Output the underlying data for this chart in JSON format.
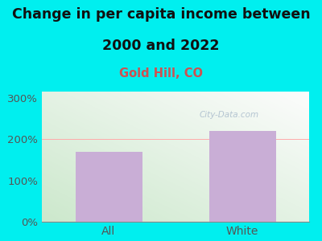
{
  "categories": [
    "All",
    "White"
  ],
  "values": [
    170,
    220
  ],
  "bar_color": "#c9aed6",
  "title_line1": "Change in per capita income between",
  "title_line2": "2000 and 2022",
  "subtitle": "Gold Hill, CO",
  "subtitle_color": "#d05050",
  "title_color": "#111111",
  "figure_bg_color": "#00efef",
  "ylabel_ticks": [
    0,
    100,
    200,
    300
  ],
  "ylim": [
    0,
    315
  ],
  "title_fontsize": 12.5,
  "subtitle_fontsize": 10.5,
  "tick_fontsize": 9.5,
  "xlabel_fontsize": 10,
  "bar_width": 0.5,
  "watermark_text": "City-Data.com",
  "watermark_color": "#aabccc",
  "tick_color": "#555555",
  "plot_bg_bottom_left": "#d4edda",
  "plot_bg_top_right": "#f8fffc"
}
